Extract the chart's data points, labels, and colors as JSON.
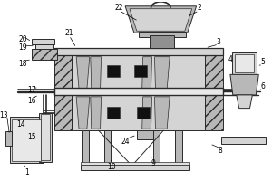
{
  "bg": "white",
  "lc": "#2a2a2a",
  "lw": 0.7,
  "gray_light": "#d4d4d4",
  "gray_mid": "#b8b8b8",
  "gray_dark": "#909090",
  "hatch_gray": "#787878",
  "black": "#111111"
}
